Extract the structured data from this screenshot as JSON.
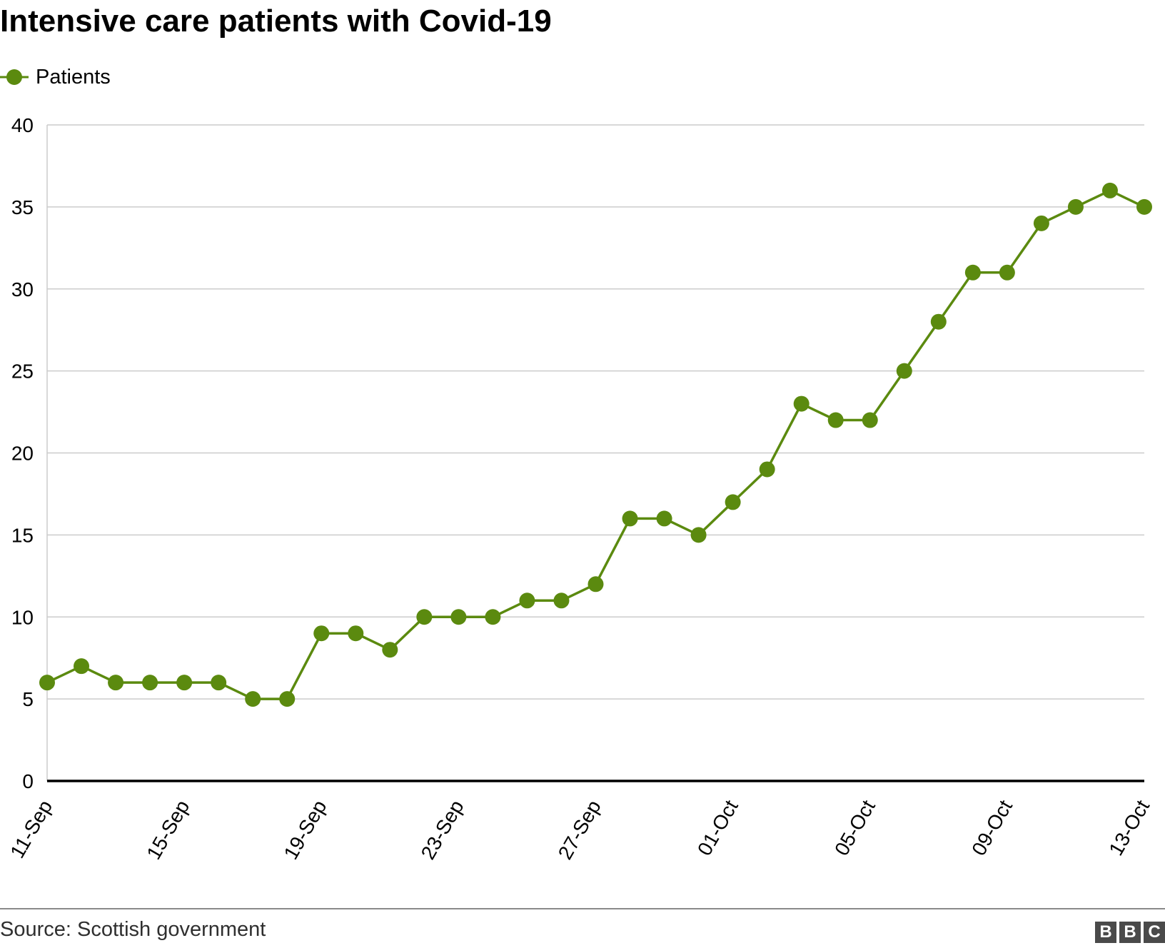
{
  "title": "Intensive care patients with Covid-19",
  "legend": {
    "label": "Patients"
  },
  "source": "Source: Scottish government",
  "logo": {
    "letters": [
      "B",
      "B",
      "C"
    ]
  },
  "colors": {
    "series": "#5b8a0f",
    "grid": "#cccccc",
    "baseline": "#000000",
    "footer_rule": "#8a8a8a"
  },
  "chart_data": {
    "type": "line",
    "title": "Intensive care patients with Covid-19",
    "xlabel": "",
    "ylabel": "",
    "ylim": [
      0,
      40
    ],
    "yticks": [
      0,
      5,
      10,
      15,
      20,
      25,
      30,
      35,
      40
    ],
    "xtick_labels": [
      "11-Sep",
      "15-Sep",
      "19-Sep",
      "23-Sep",
      "27-Sep",
      "01-Oct",
      "05-Oct",
      "09-Oct",
      "13-Oct"
    ],
    "grid": true,
    "legend_position": "top-left",
    "x": [
      "11-Sep",
      "12-Sep",
      "13-Sep",
      "14-Sep",
      "15-Sep",
      "16-Sep",
      "17-Sep",
      "18-Sep",
      "19-Sep",
      "20-Sep",
      "21-Sep",
      "22-Sep",
      "23-Sep",
      "24-Sep",
      "25-Sep",
      "26-Sep",
      "27-Sep",
      "28-Sep",
      "29-Sep",
      "30-Sep",
      "01-Oct",
      "02-Oct",
      "03-Oct",
      "04-Oct",
      "05-Oct",
      "06-Oct",
      "07-Oct",
      "08-Oct",
      "09-Oct",
      "10-Oct",
      "11-Oct",
      "12-Oct",
      "13-Oct"
    ],
    "series": [
      {
        "name": "Patients",
        "values": [
          6,
          7,
          6,
          6,
          6,
          6,
          5,
          5,
          9,
          9,
          8,
          10,
          10,
          10,
          11,
          11,
          12,
          16,
          16,
          15,
          17,
          19,
          23,
          22,
          22,
          25,
          28,
          31,
          31,
          34,
          35,
          36,
          35
        ]
      }
    ]
  }
}
